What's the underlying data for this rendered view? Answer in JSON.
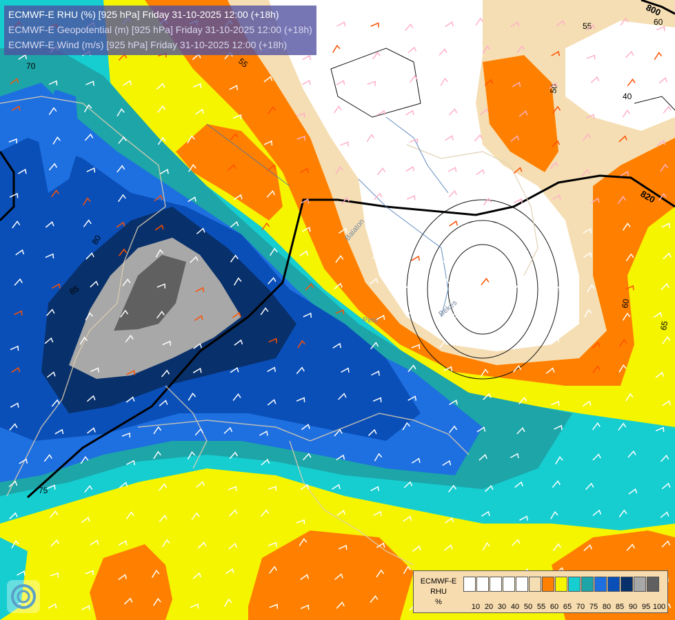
{
  "titles": {
    "line1": "ECMWF-E RHU (%) [925 hPa] Friday 31-10-2025 12:00 (+18h)",
    "line2": "ECMWF-E Geopotential (m) [925 hPa] Friday 31-10-2025 12:00 (+18h)",
    "line3": "ECMWF-E Wind (m/s) [925 hPa] Friday 31-10-2025 12:00 (+18h)"
  },
  "legend": {
    "name_line1": "ECMWF-E",
    "name_line2": "RHU",
    "unit": "%",
    "labels": [
      "10",
      "20",
      "30",
      "40",
      "50",
      "55",
      "60",
      "65",
      "70",
      "75",
      "80",
      "85",
      "90",
      "95",
      "100"
    ],
    "colors": [
      "#ffffff",
      "#ffffff",
      "#ffffff",
      "#ffffff",
      "#ffffff",
      "#f5deb3",
      "#ff8000",
      "#f5f500",
      "#16cdd0",
      "#1da5a8",
      "#1e6fe0",
      "#0a4fb8",
      "#08306b",
      "#a8a8a8",
      "#606060"
    ]
  },
  "contour_labels": {
    "geopotential_820": "820",
    "geopotential_800": "800",
    "rhu_70": "70",
    "rhu_55_a": "55",
    "rhu_55_b": "55",
    "rhu_60_a": "60",
    "rhu_60_b": "60",
    "rhu_65": "65",
    "rhu_80": "80",
    "rhu_85": "85",
    "rhu_75": "75",
    "rhu_50": "50",
    "rhu_40": "40"
  },
  "place_labels": {
    "lake_balaton": "Balaton",
    "bekes": "Békés",
    "pest": "Pest"
  },
  "colors": {
    "white": "#ffffff",
    "tan": "#f5deb3",
    "orange": "#ff8000",
    "yellow": "#f5f500",
    "cyan": "#16cdd0",
    "teal": "#1da5a8",
    "blue": "#1e6fe0",
    "mid_blue": "#0a4fb8",
    "navy": "#08306b",
    "light_gray": "#a8a8a8",
    "dark_gray": "#606060",
    "barb_white": "#ffffff",
    "barb_pink": "#ffb0c8",
    "barb_orange": "#ff5000"
  }
}
